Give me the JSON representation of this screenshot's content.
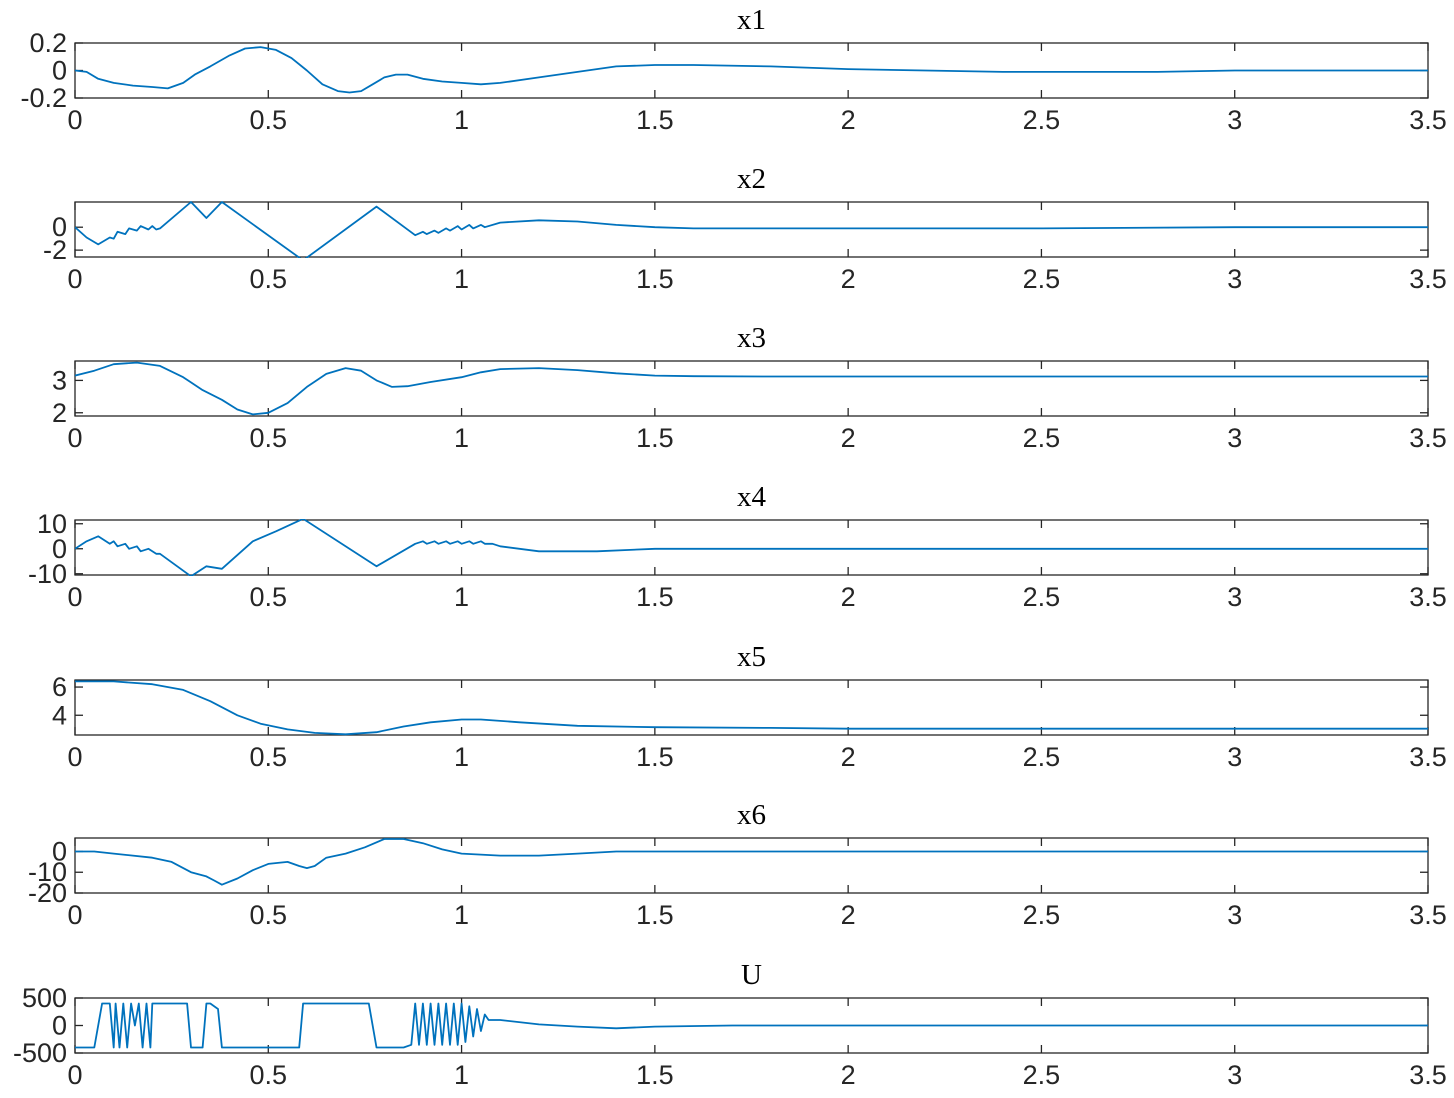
{
  "figure": {
    "line_color": "#0072BD",
    "axis_color": "#262626",
    "background": "#ffffff",
    "x_ticks": [
      "0",
      "0.5",
      "1",
      "1.5",
      "2",
      "2.5",
      "3",
      "3.5"
    ]
  },
  "chart_data": [
    {
      "type": "line",
      "title": "x1",
      "xlim": [
        0,
        3.5
      ],
      "ylim": [
        -0.2,
        0.2
      ],
      "yticks": [
        0.2,
        0,
        -0.2
      ],
      "ytick_labels": [
        "0.2",
        "0",
        "-0.2"
      ],
      "x": [
        0,
        0.03,
        0.06,
        0.1,
        0.15,
        0.2,
        0.24,
        0.28,
        0.31,
        0.35,
        0.4,
        0.44,
        0.48,
        0.52,
        0.56,
        0.6,
        0.64,
        0.68,
        0.71,
        0.74,
        0.77,
        0.8,
        0.83,
        0.86,
        0.9,
        0.95,
        1.0,
        1.05,
        1.1,
        1.2,
        1.3,
        1.4,
        1.5,
        1.6,
        1.8,
        2.0,
        2.2,
        2.4,
        2.6,
        2.8,
        3.0,
        3.2,
        3.4,
        3.5
      ],
      "y": [
        0,
        -0.01,
        -0.06,
        -0.09,
        -0.11,
        -0.12,
        -0.13,
        -0.09,
        -0.03,
        0.03,
        0.11,
        0.16,
        0.17,
        0.15,
        0.09,
        0.0,
        -0.1,
        -0.15,
        -0.16,
        -0.15,
        -0.1,
        -0.05,
        -0.03,
        -0.03,
        -0.06,
        -0.08,
        -0.09,
        -0.1,
        -0.09,
        -0.05,
        -0.01,
        0.03,
        0.04,
        0.04,
        0.03,
        0.01,
        0.0,
        -0.01,
        -0.01,
        -0.01,
        0.0,
        0.0,
        0.0,
        0.0
      ]
    },
    {
      "type": "line",
      "title": "x2",
      "xlim": [
        0,
        3.5
      ],
      "ylim": [
        -2.6,
        2.2
      ],
      "yticks": [
        0,
        -2
      ],
      "ytick_labels": [
        "0",
        "-2"
      ],
      "x": [
        0,
        0.03,
        0.06,
        0.09,
        0.1,
        0.11,
        0.13,
        0.14,
        0.16,
        0.17,
        0.19,
        0.2,
        0.21,
        0.22,
        0.3,
        0.34,
        0.38,
        0.59,
        0.78,
        0.88,
        0.9,
        0.91,
        0.93,
        0.94,
        0.96,
        0.97,
        0.99,
        1.0,
        1.02,
        1.03,
        1.05,
        1.06,
        1.1,
        1.2,
        1.3,
        1.4,
        1.5,
        1.6,
        2.0,
        2.5,
        3.0,
        3.5
      ],
      "y": [
        0,
        -0.9,
        -1.5,
        -0.9,
        -1.0,
        -0.4,
        -0.6,
        -0.1,
        -0.3,
        0.1,
        -0.2,
        0.1,
        -0.2,
        -0.1,
        2.2,
        0.8,
        2.2,
        -2.9,
        1.8,
        -0.7,
        -0.4,
        -0.6,
        -0.3,
        -0.5,
        -0.1,
        -0.3,
        0.1,
        -0.2,
        0.2,
        -0.1,
        0.2,
        0.0,
        0.4,
        0.6,
        0.5,
        0.2,
        0.0,
        -0.1,
        -0.1,
        -0.1,
        0.0,
        0.0
      ]
    },
    {
      "type": "line",
      "title": "x3",
      "xlim": [
        0,
        3.5
      ],
      "ylim": [
        1.9,
        3.6
      ],
      "yticks": [
        3,
        2
      ],
      "ytick_labels": [
        "3",
        "2"
      ],
      "x": [
        0,
        0.05,
        0.1,
        0.16,
        0.22,
        0.28,
        0.33,
        0.38,
        0.42,
        0.46,
        0.5,
        0.55,
        0.6,
        0.65,
        0.7,
        0.74,
        0.78,
        0.82,
        0.86,
        0.92,
        1.0,
        1.05,
        1.1,
        1.2,
        1.3,
        1.4,
        1.5,
        1.6,
        1.8,
        2.0,
        2.5,
        3.0,
        3.5
      ],
      "y": [
        3.15,
        3.3,
        3.5,
        3.55,
        3.45,
        3.1,
        2.7,
        2.4,
        2.1,
        1.95,
        2.0,
        2.3,
        2.8,
        3.2,
        3.38,
        3.3,
        3.0,
        2.8,
        2.82,
        2.95,
        3.1,
        3.25,
        3.35,
        3.38,
        3.32,
        3.22,
        3.15,
        3.13,
        3.12,
        3.12,
        3.12,
        3.12,
        3.12
      ]
    },
    {
      "type": "line",
      "title": "x4",
      "xlim": [
        0,
        3.5
      ],
      "ylim": [
        -10.5,
        11.5
      ],
      "yticks": [
        10,
        0,
        -10
      ],
      "ytick_labels": [
        "10",
        "0",
        "-10"
      ],
      "x": [
        0,
        0.03,
        0.06,
        0.09,
        0.1,
        0.11,
        0.13,
        0.14,
        0.16,
        0.17,
        0.19,
        0.2,
        0.21,
        0.22,
        0.3,
        0.34,
        0.38,
        0.46,
        0.52,
        0.59,
        0.78,
        0.88,
        0.9,
        0.91,
        0.93,
        0.94,
        0.96,
        0.97,
        0.99,
        1.0,
        1.02,
        1.03,
        1.05,
        1.06,
        1.08,
        1.1,
        1.2,
        1.35,
        1.5,
        1.7,
        2.0,
        2.5,
        3.0,
        3.5
      ],
      "y": [
        0,
        3,
        5,
        2,
        3,
        1,
        2,
        0,
        1,
        -1,
        0,
        -1,
        -2,
        -2,
        -11,
        -7,
        -8,
        3,
        7,
        12,
        -7,
        2,
        3,
        2,
        3,
        2,
        3,
        2,
        3,
        2,
        3,
        2,
        3,
        2,
        2,
        1,
        -1,
        -1,
        0,
        0,
        0,
        0,
        0,
        0
      ]
    },
    {
      "type": "line",
      "title": "x5",
      "xlim": [
        0,
        3.5
      ],
      "ylim": [
        2.6,
        6.5
      ],
      "yticks": [
        6,
        4
      ],
      "ytick_labels": [
        "6",
        "4"
      ],
      "x": [
        0,
        0.1,
        0.2,
        0.28,
        0.35,
        0.42,
        0.48,
        0.55,
        0.62,
        0.7,
        0.78,
        0.85,
        0.92,
        1.0,
        1.05,
        1.15,
        1.3,
        1.5,
        1.8,
        2.0,
        2.5,
        3.0,
        3.5
      ],
      "y": [
        6.4,
        6.4,
        6.2,
        5.8,
        5.0,
        4.0,
        3.4,
        3.0,
        2.75,
        2.65,
        2.8,
        3.2,
        3.5,
        3.7,
        3.7,
        3.5,
        3.25,
        3.15,
        3.1,
        3.05,
        3.05,
        3.05,
        3.05
      ]
    },
    {
      "type": "line",
      "title": "x6",
      "xlim": [
        0,
        3.5
      ],
      "ylim": [
        -20,
        6.5
      ],
      "yticks": [
        0,
        -10,
        -20
      ],
      "ytick_labels": [
        "0",
        "-10",
        "-20"
      ],
      "x": [
        0,
        0.05,
        0.1,
        0.2,
        0.25,
        0.3,
        0.34,
        0.36,
        0.38,
        0.42,
        0.46,
        0.5,
        0.55,
        0.58,
        0.6,
        0.62,
        0.65,
        0.7,
        0.75,
        0.8,
        0.85,
        0.9,
        0.95,
        1.0,
        1.1,
        1.2,
        1.3,
        1.4,
        1.5,
        1.6,
        2.0,
        2.5,
        3.0,
        3.5
      ],
      "y": [
        0,
        0,
        -1,
        -3,
        -5,
        -10,
        -12,
        -14,
        -16,
        -13,
        -9,
        -6,
        -5,
        -7,
        -8,
        -7,
        -3,
        -1,
        2,
        6,
        6,
        4,
        1,
        -1,
        -2,
        -2,
        -1,
        0,
        0,
        0,
        0,
        0,
        0,
        0
      ]
    },
    {
      "type": "line",
      "title": "U",
      "xlim": [
        0,
        3.5
      ],
      "ylim": [
        -500,
        500
      ],
      "yticks": [
        500,
        0,
        -500
      ],
      "ytick_labels": [
        "500",
        "0",
        "-500"
      ],
      "x": [
        0,
        0.05,
        0.07,
        0.09,
        0.1,
        0.105,
        0.115,
        0.125,
        0.135,
        0.145,
        0.155,
        0.165,
        0.175,
        0.185,
        0.195,
        0.2,
        0.29,
        0.3,
        0.33,
        0.34,
        0.35,
        0.37,
        0.38,
        0.39,
        0.58,
        0.59,
        0.76,
        0.78,
        0.85,
        0.87,
        0.88,
        0.89,
        0.9,
        0.91,
        0.92,
        0.93,
        0.94,
        0.95,
        0.96,
        0.97,
        0.98,
        0.99,
        1.0,
        1.01,
        1.02,
        1.03,
        1.04,
        1.05,
        1.06,
        1.07,
        1.1,
        1.2,
        1.3,
        1.4,
        1.5,
        1.7,
        2.0,
        2.5,
        3.0,
        3.5
      ],
      "y": [
        -400,
        -400,
        400,
        400,
        -400,
        400,
        -400,
        400,
        -400,
        400,
        0,
        400,
        -400,
        400,
        -400,
        400,
        400,
        -400,
        -400,
        400,
        400,
        300,
        -400,
        -400,
        -400,
        400,
        400,
        -400,
        -400,
        -350,
        400,
        -350,
        400,
        -350,
        400,
        -350,
        400,
        -350,
        400,
        -350,
        400,
        -350,
        400,
        -300,
        350,
        -200,
        300,
        -100,
        200,
        100,
        100,
        20,
        -20,
        -50,
        -20,
        0,
        0,
        0,
        0,
        0
      ]
    }
  ]
}
